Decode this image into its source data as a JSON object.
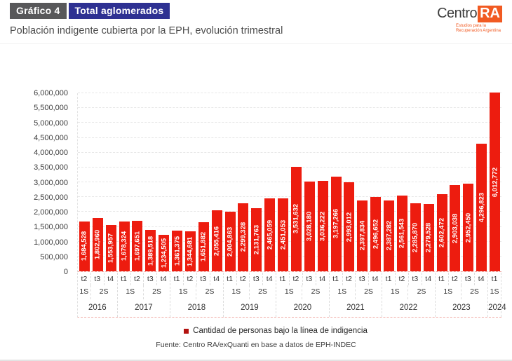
{
  "header": {
    "tag": "Gráfico 4",
    "tag2": "Total aglomerados"
  },
  "logo": {
    "part1": "Centro",
    "part2": "RA",
    "tagline1": "Estudios para la",
    "tagline2": "Recuperación Argentina"
  },
  "chart_data": {
    "type": "bar",
    "title": "Población indigente cubierta por la EPH, evolución trimestral",
    "legend": "Cantidad de personas bajo la línea de indigencia",
    "bar_color": "#ed1c0f",
    "ylim": [
      0,
      6000000
    ],
    "ytick_step": 500000,
    "grid": "horizontal-dashed",
    "legend_position": "bottom",
    "groups": [
      {
        "year": "2016",
        "quarters": [
          "t2",
          "t3",
          "t4"
        ],
        "semesters": [
          {
            "label": "1S",
            "span": 1
          },
          {
            "label": "2S",
            "span": 2
          }
        ],
        "values": [
          1684528,
          1802960,
          1553957
        ]
      },
      {
        "year": "2017",
        "quarters": [
          "t1",
          "t2",
          "t3",
          "t4"
        ],
        "semesters": [
          {
            "label": "1S",
            "span": 2
          },
          {
            "label": "2S",
            "span": 2
          }
        ],
        "values": [
          1678324,
          1697651,
          1389518,
          1234505
        ]
      },
      {
        "year": "2018",
        "quarters": [
          "t1",
          "t2",
          "t3",
          "t4"
        ],
        "semesters": [
          {
            "label": "1S",
            "span": 2
          },
          {
            "label": "2S",
            "span": 2
          }
        ],
        "values": [
          1361375,
          1344681,
          1651882,
          2055416
        ]
      },
      {
        "year": "2019",
        "quarters": [
          "t1",
          "t2",
          "t3",
          "t4"
        ],
        "semesters": [
          {
            "label": "1S",
            "span": 2
          },
          {
            "label": "2S",
            "span": 2
          }
        ],
        "values": [
          2004863,
          2299328,
          2131763,
          2465059
        ]
      },
      {
        "year": "2020",
        "quarters": [
          "t1",
          "t2",
          "t3",
          "t4"
        ],
        "semesters": [
          {
            "label": "1S",
            "span": 2
          },
          {
            "label": "2S",
            "span": 2
          }
        ],
        "values": [
          2451053,
          3531632,
          3028180,
          3036222
        ]
      },
      {
        "year": "2021",
        "quarters": [
          "t1",
          "t2",
          "t3",
          "t4"
        ],
        "semesters": [
          {
            "label": "1S",
            "span": 2
          },
          {
            "label": "2S",
            "span": 2
          }
        ],
        "values": [
          3197266,
          2993012,
          2397834,
          2496652
        ]
      },
      {
        "year": "2022",
        "quarters": [
          "t1",
          "t2",
          "t3",
          "t4"
        ],
        "semesters": [
          {
            "label": "1S",
            "span": 2
          },
          {
            "label": "2S",
            "span": 2
          }
        ],
        "values": [
          2387282,
          2561543,
          2285870,
          2279528
        ]
      },
      {
        "year": "2023",
        "quarters": [
          "t1",
          "t2",
          "t3",
          "t4"
        ],
        "semesters": [
          {
            "label": "1S",
            "span": 2
          },
          {
            "label": "2S",
            "span": 2
          }
        ],
        "values": [
          2602472,
          2903038,
          2952450,
          4296823
        ]
      },
      {
        "year": "2024",
        "quarters": [
          "t1"
        ],
        "semesters": [
          {
            "label": "1S",
            "span": 1
          }
        ],
        "values": [
          6012772
        ]
      }
    ]
  },
  "footer": {
    "source": "Fuente: Centro RA/exQuanti en base a datos de EPH-INDEC"
  }
}
